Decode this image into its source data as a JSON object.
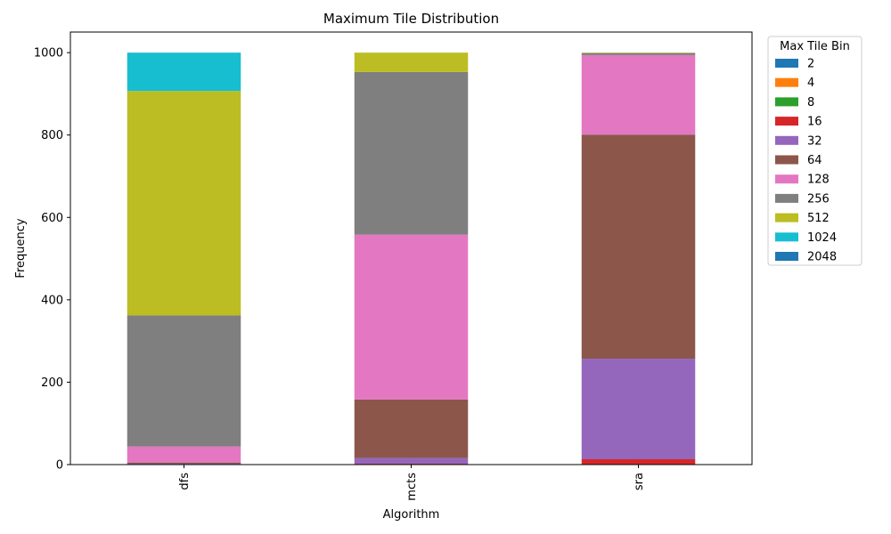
{
  "chart_data": {
    "type": "bar",
    "stacked": true,
    "title": "Maximum Tile Distribution",
    "xlabel": "Algorithm",
    "ylabel": "Frequency",
    "ylim": [
      0,
      1050
    ],
    "yticks": [
      0,
      200,
      400,
      600,
      800,
      1000
    ],
    "categories": [
      "dfs",
      "mcts",
      "sra"
    ],
    "legend_title": "Max Tile Bin",
    "legend_position": "outside-top-right",
    "grid": false,
    "series": [
      {
        "name": "2",
        "color": "#1f77b4",
        "values": [
          0,
          0,
          0
        ]
      },
      {
        "name": "4",
        "color": "#ff7f0e",
        "values": [
          0,
          0,
          0
        ]
      },
      {
        "name": "8",
        "color": "#2ca02c",
        "values": [
          0,
          0,
          0
        ]
      },
      {
        "name": "16",
        "color": "#d62728",
        "values": [
          1,
          2,
          13
        ]
      },
      {
        "name": "32",
        "color": "#9467bd",
        "values": [
          1,
          14,
          244
        ]
      },
      {
        "name": "64",
        "color": "#8c564b",
        "values": [
          3,
          142,
          544
        ]
      },
      {
        "name": "128",
        "color": "#e377c2",
        "values": [
          39,
          400,
          193
        ]
      },
      {
        "name": "256",
        "color": "#7f7f7f",
        "values": [
          318,
          395,
          5
        ]
      },
      {
        "name": "512",
        "color": "#bcbd22",
        "values": [
          545,
          47,
          1
        ]
      },
      {
        "name": "1024",
        "color": "#17becf",
        "values": [
          93,
          0,
          0
        ]
      },
      {
        "name": "2048",
        "color": "#1f77b4",
        "values": [
          0,
          0,
          0
        ]
      }
    ]
  }
}
